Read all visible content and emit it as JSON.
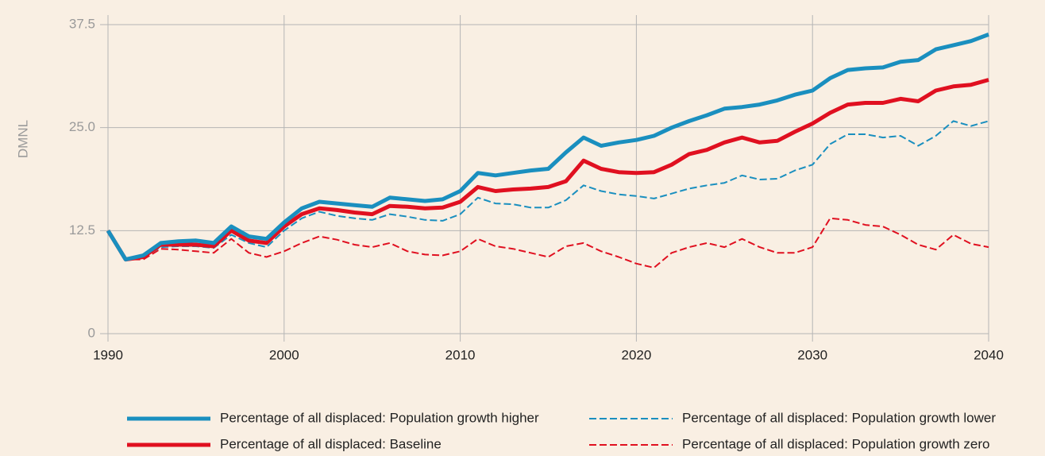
{
  "chart_data": {
    "type": "line",
    "y_label": "DMNL",
    "x": [
      1990,
      1991,
      1992,
      1993,
      1994,
      1995,
      1996,
      1997,
      1998,
      1999,
      2000,
      2001,
      2002,
      2003,
      2004,
      2005,
      2006,
      2007,
      2008,
      2009,
      2010,
      2011,
      2012,
      2013,
      2014,
      2015,
      2016,
      2017,
      2018,
      2019,
      2020,
      2021,
      2022,
      2023,
      2024,
      2025,
      2026,
      2027,
      2028,
      2029,
      2030,
      2031,
      2032,
      2033,
      2034,
      2035,
      2036,
      2037,
      2038,
      2039,
      2040
    ],
    "series": [
      {
        "name": "Percentage of all displaced: Population growth higher",
        "color": "#1a8fbf",
        "dashed": false,
        "values": [
          12.5,
          9,
          9.5,
          11,
          11.2,
          11.3,
          11,
          13,
          11.8,
          11.5,
          13.5,
          15.2,
          16,
          15.8,
          15.6,
          15.4,
          16.5,
          16.3,
          16.1,
          16.3,
          17.3,
          19.5,
          19.2,
          19.5,
          19.8,
          20,
          22,
          23.8,
          22.8,
          23.2,
          23.5,
          24,
          25,
          25.8,
          26.5,
          27.3,
          27.5,
          27.8,
          28.3,
          29,
          29.5,
          31,
          32,
          32.2,
          32.3,
          33,
          33.2,
          34.5,
          35,
          35.5,
          36.3
        ]
      },
      {
        "name": "Percentage of all displaced: Baseline",
        "color": "#e01020",
        "dashed": false,
        "values": [
          12.5,
          9,
          9.3,
          10.8,
          10.8,
          10.8,
          10.6,
          12.5,
          11.3,
          11,
          13,
          14.5,
          15.2,
          15,
          14.7,
          14.5,
          15.5,
          15.4,
          15.2,
          15.3,
          16,
          17.8,
          17.3,
          17.5,
          17.6,
          17.8,
          18.5,
          21,
          20,
          19.6,
          19.5,
          19.6,
          20.5,
          21.8,
          22.3,
          23.2,
          23.8,
          23.2,
          23.4,
          24.5,
          25.5,
          26.8,
          27.8,
          28,
          28,
          28.5,
          28.2,
          29.5,
          30,
          30.2,
          30.8
        ]
      },
      {
        "name": "Percentage of all displaced: Population growth lower",
        "color": "#1a8fbf",
        "dashed": true,
        "values": [
          12.5,
          9,
          9.3,
          10.5,
          10.6,
          10.6,
          10.4,
          12,
          11,
          10.5,
          12.5,
          14,
          14.8,
          14.3,
          14,
          13.8,
          14.5,
          14.2,
          13.8,
          13.7,
          14.5,
          16.5,
          15.8,
          15.7,
          15.3,
          15.3,
          16.2,
          18,
          17.3,
          16.9,
          16.7,
          16.4,
          17,
          17.6,
          18,
          18.3,
          19.2,
          18.7,
          18.8,
          19.8,
          20.5,
          23,
          24.2,
          24.2,
          23.8,
          24,
          22.8,
          24,
          25.8,
          25.2,
          25.8
        ]
      },
      {
        "name": "Percentage of all displaced: Population growth zero",
        "color": "#e01020",
        "dashed": true,
        "values": [
          12.5,
          9,
          9,
          10.3,
          10.2,
          10,
          9.8,
          11.5,
          9.8,
          9.3,
          10,
          11,
          11.8,
          11.4,
          10.8,
          10.5,
          11,
          10,
          9.6,
          9.5,
          10,
          11.5,
          10.6,
          10.3,
          9.8,
          9.3,
          10.6,
          11,
          10,
          9.3,
          8.5,
          8,
          9.8,
          10.5,
          11,
          10.5,
          11.5,
          10.5,
          9.8,
          9.8,
          10.5,
          14,
          13.8,
          13.2,
          13,
          12,
          10.8,
          10.2,
          12,
          10.9,
          10.5
        ]
      }
    ],
    "xlim": [
      1990,
      2040
    ],
    "xticks": [
      1990,
      2000,
      2010,
      2020,
      2030,
      2040
    ],
    "ylim": [
      0,
      37.5
    ],
    "yticks": [
      0,
      12.5,
      {
        "value": 25,
        "label": "25.0"
      },
      37.5
    ],
    "grid": true
  }
}
